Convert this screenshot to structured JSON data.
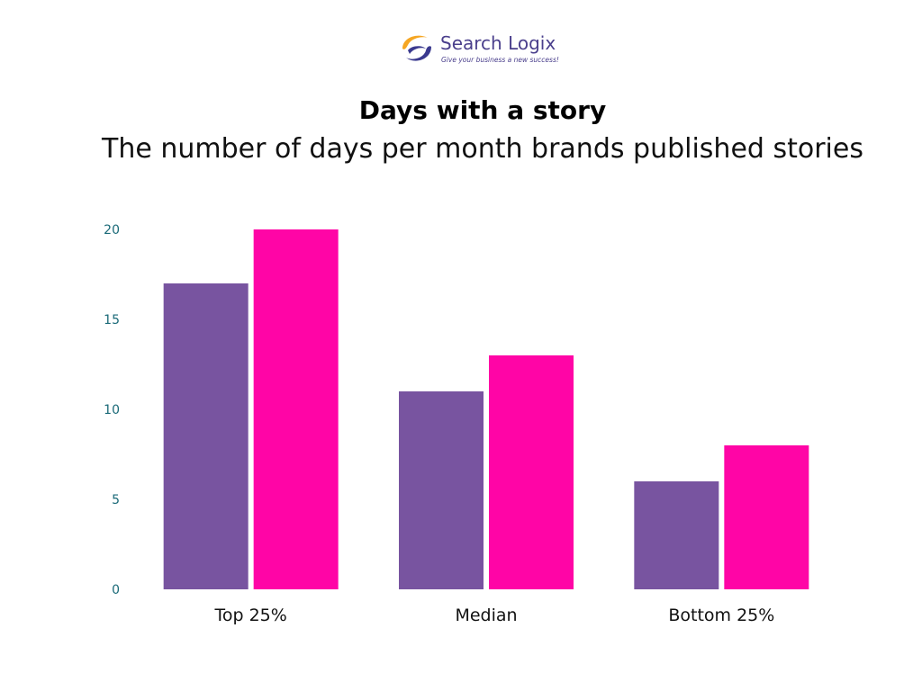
{
  "logo": {
    "name": "Search Logix",
    "tagline": "Give your business a new success!",
    "colors": {
      "orange": "#f5a623",
      "navy": "#3b3a8f"
    }
  },
  "chart_data": {
    "type": "bar",
    "title": "Days with a story",
    "subtitle": "The number of days per month brands published stories",
    "categories": [
      "Top 25%",
      "Median",
      "Bottom 25%"
    ],
    "series": [
      {
        "values": [
          17,
          11,
          6
        ],
        "color": "#7854a0"
      },
      {
        "values": [
          20,
          13,
          8
        ],
        "color": "#ff05a6"
      }
    ],
    "yticks": [
      0,
      5,
      10,
      15,
      20
    ],
    "ylim": [
      0,
      20
    ],
    "xlabel": "",
    "ylabel": "",
    "grid": false,
    "legend": "none"
  }
}
